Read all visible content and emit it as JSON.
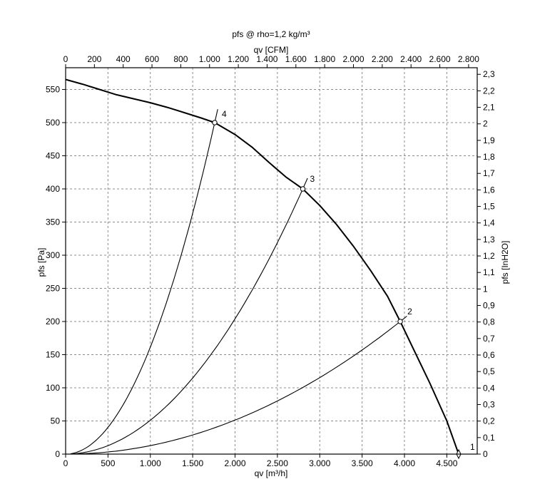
{
  "chart_data": {
    "type": "line",
    "title": "pfs @ rho=1,2 kg/m³",
    "xlabel": "qv [m³/h]",
    "ylabel": "pfs [Pa]",
    "x2label": "qv [CFM]",
    "y2label": "pfs [InH2O]",
    "xlim": [
      0,
      4800
    ],
    "ylim": [
      0,
      575
    ],
    "x_ticks": [
      0,
      500,
      1000,
      1500,
      2000,
      2500,
      3000,
      3500,
      4000,
      4500
    ],
    "x_tick_labels": [
      "0",
      "500",
      "1.000",
      "1.500",
      "2.000",
      "2.500",
      "3.000",
      "3.500",
      "4.000",
      "4.500"
    ],
    "y_ticks": [
      0,
      50,
      100,
      150,
      200,
      250,
      300,
      350,
      400,
      450,
      500,
      550
    ],
    "y_tick_labels": [
      "0",
      "50",
      "100",
      "150",
      "200",
      "250",
      "300",
      "350",
      "400",
      "450",
      "500",
      "550"
    ],
    "x2_ticks_cfm": [
      0,
      200,
      400,
      600,
      800,
      1000,
      1200,
      1400,
      1600,
      1800,
      2000,
      2200,
      2400,
      2600,
      2800
    ],
    "x2_tick_labels": [
      "0",
      "200",
      "400",
      "600",
      "800",
      "1.000",
      "1.200",
      "1.400",
      "1.600",
      "1.800",
      "2.000",
      "2.200",
      "2.400",
      "2.600",
      "2.800"
    ],
    "y2_ticks_inh2o": [
      0,
      0.1,
      0.2,
      0.3,
      0.4,
      0.5,
      0.6,
      0.7,
      0.8,
      0.9,
      1,
      1.1,
      1.2,
      1.3,
      1.4,
      1.5,
      1.6,
      1.7,
      1.8,
      1.9,
      2,
      2.1,
      2.2,
      2.3
    ],
    "y2_tick_labels": [
      "0",
      "0,1",
      "0,2",
      "0,3",
      "0,4",
      "0,5",
      "0,6",
      "0,7",
      "0,8",
      "0,9",
      "1",
      "1,1",
      "1,2",
      "1,3",
      "1,4",
      "1,5",
      "1,6",
      "1,7",
      "1,8",
      "1,9",
      "2",
      "2,1",
      "2,2",
      "2,3"
    ],
    "cfm_per_m3h": 0.5886,
    "inh2o_per_pa": 0.004015,
    "grid": true,
    "fan_curve": {
      "x": [
        0,
        200,
        400,
        600,
        800,
        1000,
        1200,
        1400,
        1600,
        1760,
        2000,
        2200,
        2400,
        2600,
        2800,
        3000,
        3200,
        3400,
        3600,
        3800,
        3950,
        4100,
        4300,
        4500,
        4640
      ],
      "y": [
        565,
        558,
        550,
        542,
        536,
        530,
        523,
        515,
        507,
        500,
        482,
        463,
        440,
        418,
        400,
        375,
        346,
        313,
        277,
        238,
        200,
        160,
        107,
        50,
        0
      ]
    },
    "system_curves": [
      {
        "label": "2",
        "x": [
          0,
          3950
        ],
        "y": [
          0,
          200
        ]
      },
      {
        "label": "3",
        "x": [
          0,
          2800
        ],
        "y": [
          0,
          400
        ]
      },
      {
        "label": "4",
        "x": [
          0,
          1760
        ],
        "y": [
          0,
          500
        ]
      }
    ],
    "operating_points": [
      {
        "label": "1",
        "x": 4640,
        "y": 0
      },
      {
        "label": "2",
        "x": 3950,
        "y": 200
      },
      {
        "label": "3",
        "x": 2800,
        "y": 400
      },
      {
        "label": "4",
        "x": 1760,
        "y": 500
      }
    ]
  }
}
